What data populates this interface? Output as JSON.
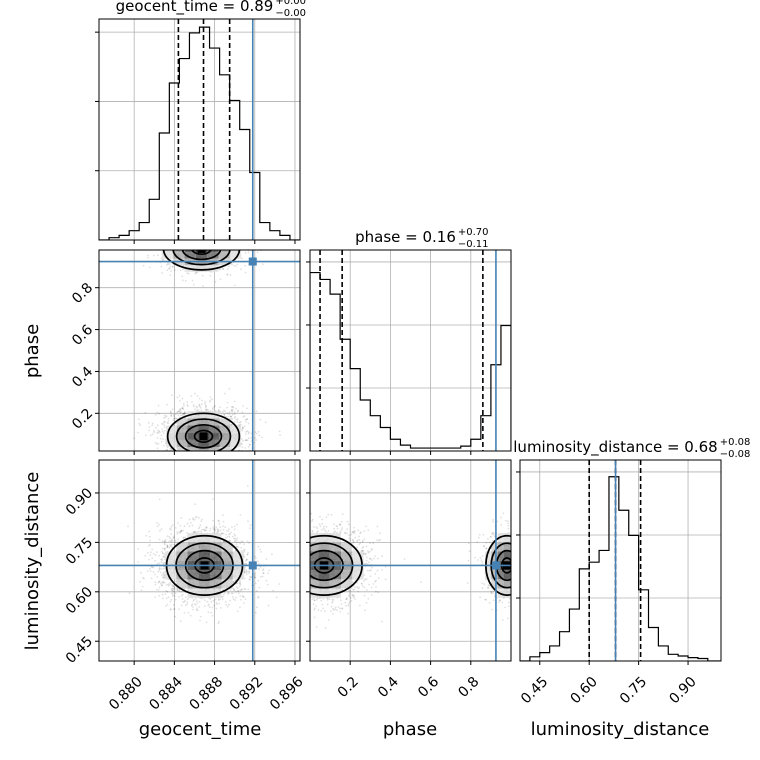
{
  "chart_data": {
    "type": "corner",
    "parameters": [
      "geocent_time",
      "phase",
      "luminosity_distance"
    ],
    "truths": {
      "geocent_time": 0.8918,
      "phase": 0.925,
      "luminosity_distance": 0.68
    },
    "panels": [
      {
        "id": "geocent_time-hist",
        "kind": "histogram",
        "param": "geocent_time",
        "title": {
          "prefix": "geocent_time = 0.89",
          "plus": "+0.00",
          "minus": "−0.00"
        },
        "xlim": [
          0.8765,
          0.8965
        ],
        "bins_x": [
          0.8765,
          0.8775,
          0.8785,
          0.8795,
          0.8805,
          0.8815,
          0.8825,
          0.8835,
          0.8845,
          0.8855,
          0.8865,
          0.8875,
          0.8885,
          0.8895,
          0.8905,
          0.8915,
          0.8925,
          0.8935,
          0.8945,
          0.8955,
          0.8965
        ],
        "counts": [
          0,
          2,
          4,
          8,
          15,
          35,
          92,
          135,
          156,
          178,
          183,
          165,
          142,
          120,
          95,
          58,
          15,
          8,
          4,
          0
        ],
        "ymax": 190,
        "quantiles": [
          0.8844,
          0.8869,
          0.8895
        ]
      },
      {
        "id": "phase-vs-geocent_time",
        "kind": "density",
        "xparam": "geocent_time",
        "yparam": "phase",
        "xlim": [
          0.8765,
          0.8965
        ],
        "ylim": [
          0.02,
          0.98
        ],
        "ticks_y": [
          "0.2",
          "0.4",
          "0.6",
          "0.8"
        ],
        "ticks_y_values": [
          0.2,
          0.4,
          0.6,
          0.8
        ],
        "modes": [
          {
            "x": 0.8869,
            "y": 0.09,
            "sx": 0.0017,
            "sy": 0.055,
            "n": 1700
          },
          {
            "x": 0.8867,
            "y": 0.985,
            "sx": 0.0018,
            "sy": 0.05,
            "n": 700
          }
        ]
      },
      {
        "id": "phase-hist",
        "kind": "histogram",
        "param": "phase",
        "title": {
          "prefix": "phase = 0.16",
          "plus": "+0.70",
          "minus": "−0.11"
        },
        "xlim": [
          0.0,
          1.0
        ],
        "bins_x": [
          0.0,
          0.05,
          0.1,
          0.15,
          0.2,
          0.25,
          0.3,
          0.35,
          0.4,
          0.45,
          0.5,
          0.55,
          0.6,
          0.65,
          0.7,
          0.75,
          0.8,
          0.85,
          0.9,
          0.95,
          1.0
        ],
        "counts": [
          182,
          175,
          160,
          114,
          84,
          52,
          36,
          24,
          12,
          6,
          3,
          3,
          3,
          3,
          3,
          5,
          12,
          36,
          88,
          128
        ],
        "ymax": 205,
        "quantiles": [
          0.05,
          0.16,
          0.86
        ]
      },
      {
        "id": "luminosity_distance-vs-geocent_time",
        "kind": "density",
        "xparam": "geocent_time",
        "yparam": "luminosity_distance",
        "xlim": [
          0.8765,
          0.8965
        ],
        "ylim": [
          0.39,
          1.0
        ],
        "ticks_x": [
          "0.880",
          "0.884",
          "0.888",
          "0.892",
          "0.896"
        ],
        "ticks_x_values": [
          0.88,
          0.884,
          0.888,
          0.892,
          0.896
        ],
        "ticks_y": [
          "0.45",
          "0.60",
          "0.75",
          "0.90"
        ],
        "ticks_y_values": [
          0.45,
          0.6,
          0.75,
          0.9
        ],
        "modes": [
          {
            "x": 0.887,
            "y": 0.68,
            "sx": 0.0018,
            "sy": 0.045,
            "n": 2400
          }
        ]
      },
      {
        "id": "luminosity_distance-vs-phase",
        "kind": "density",
        "xparam": "phase",
        "yparam": "luminosity_distance",
        "xlim": [
          0.0,
          1.0
        ],
        "ylim": [
          0.39,
          1.0
        ],
        "ticks_x": [
          "0.2",
          "0.4",
          "0.6",
          "0.8"
        ],
        "ticks_x_values": [
          0.2,
          0.4,
          0.6,
          0.8
        ],
        "modes": [
          {
            "x": 0.07,
            "y": 0.68,
            "sx": 0.09,
            "sy": 0.045,
            "n": 1700
          },
          {
            "x": 0.98,
            "y": 0.68,
            "sx": 0.05,
            "sy": 0.045,
            "n": 600
          }
        ]
      },
      {
        "id": "luminosity_distance-hist",
        "kind": "histogram",
        "param": "luminosity_distance",
        "title": {
          "prefix": "luminosity_distance = 0.68",
          "plus": "+0.08",
          "minus": "−0.08"
        },
        "xlim": [
          0.39,
          1.0
        ],
        "ticks_x": [
          "0.45",
          "0.60",
          "0.75",
          "0.90"
        ],
        "ticks_x_values": [
          0.45,
          0.6,
          0.75,
          0.9
        ],
        "bins_x": [
          0.39,
          0.42,
          0.45,
          0.48,
          0.51,
          0.54,
          0.57,
          0.6,
          0.63,
          0.66,
          0.69,
          0.72,
          0.75,
          0.78,
          0.81,
          0.84,
          0.87,
          0.9,
          0.93,
          0.96,
          1.0
        ],
        "counts": [
          0,
          5,
          10,
          18,
          35,
          62,
          110,
          118,
          132,
          220,
          180,
          150,
          85,
          40,
          18,
          8,
          6,
          4,
          3,
          0
        ],
        "ymax": 240,
        "quantiles": [
          0.6,
          0.68,
          0.756
        ]
      }
    ],
    "colors": {
      "truth": "#4682b4",
      "grid": "#b0b0b0",
      "density": "#000000"
    }
  }
}
